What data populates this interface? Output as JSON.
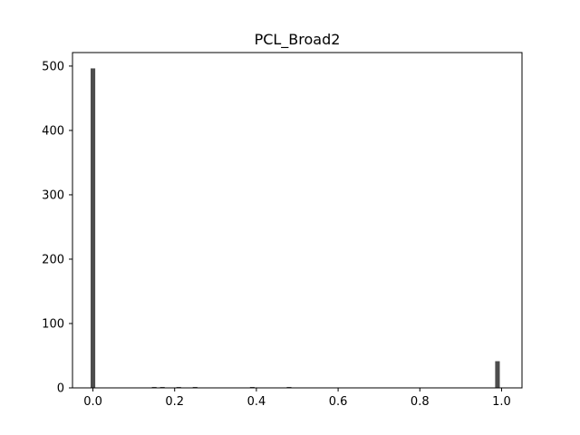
{
  "chart_data": {
    "type": "bar",
    "title": "PCL_Broad2",
    "xlabel": "",
    "ylabel": "",
    "xlim": [
      -0.05,
      1.05
    ],
    "ylim": [
      0,
      521
    ],
    "grid": false,
    "bar_color": "#4d4d4d",
    "bin_width": 0.01,
    "bins": [
      {
        "x": 0.0,
        "value": 496
      },
      {
        "x": 0.15,
        "value": 1
      },
      {
        "x": 0.17,
        "value": 1
      },
      {
        "x": 0.21,
        "value": 1
      },
      {
        "x": 0.25,
        "value": 1
      },
      {
        "x": 0.39,
        "value": 1
      },
      {
        "x": 0.48,
        "value": 1
      },
      {
        "x": 0.99,
        "value": 41
      }
    ],
    "xticks": [
      {
        "value": 0.0,
        "label": "0.0"
      },
      {
        "value": 0.2,
        "label": "0.2"
      },
      {
        "value": 0.4,
        "label": "0.4"
      },
      {
        "value": 0.6,
        "label": "0.6"
      },
      {
        "value": 0.8,
        "label": "0.8"
      },
      {
        "value": 1.0,
        "label": "1.0"
      }
    ],
    "yticks": [
      {
        "value": 0,
        "label": "0"
      },
      {
        "value": 100,
        "label": "100"
      },
      {
        "value": 200,
        "label": "200"
      },
      {
        "value": 300,
        "label": "300"
      },
      {
        "value": 400,
        "label": "400"
      },
      {
        "value": 500,
        "label": "500"
      }
    ]
  }
}
